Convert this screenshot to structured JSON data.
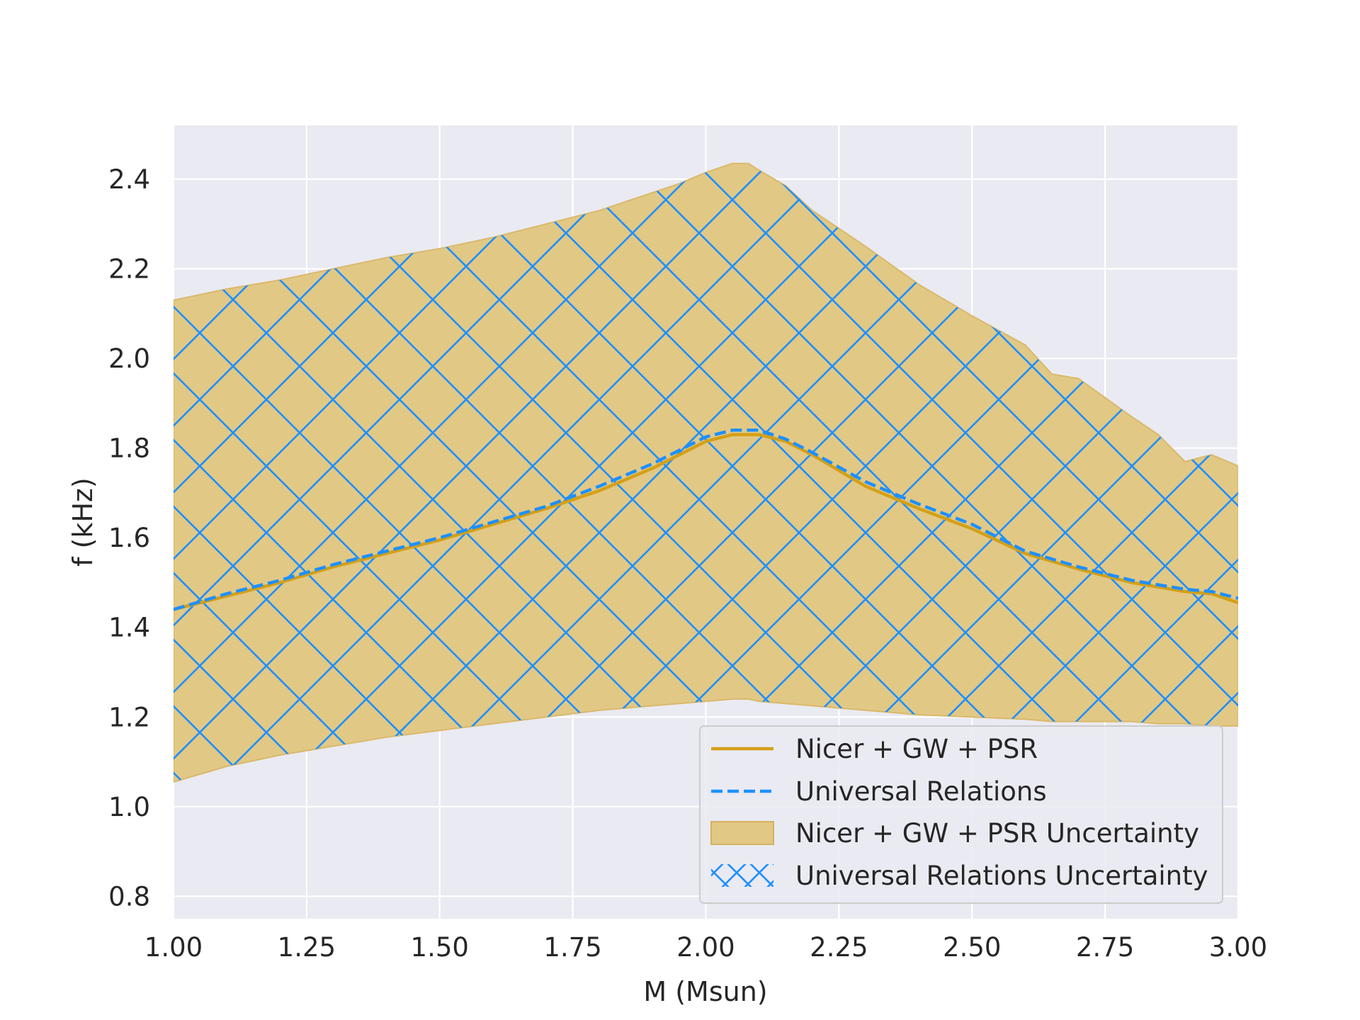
{
  "chart_data": {
    "type": "line",
    "title": "",
    "xlabel": "M (Msun)",
    "ylabel": "f (kHz)",
    "xlim": [
      1.0,
      3.0
    ],
    "ylim": [
      0.75,
      2.52
    ],
    "x_ticks": [
      "1.00",
      "1.25",
      "1.50",
      "1.75",
      "2.00",
      "2.25",
      "2.50",
      "2.75",
      "3.00"
    ],
    "y_ticks": [
      "0.8",
      "1.0",
      "1.2",
      "1.4",
      "1.6",
      "1.8",
      "2.0",
      "2.2",
      "2.4"
    ],
    "grid": true,
    "legend_position": "lower-right",
    "colors": {
      "background": "#eaeaf2",
      "grid": "#ffffff",
      "nicer_line": "#d4a017",
      "nicer_band": "#e2c885",
      "universal": "#1e90ff"
    },
    "series": [
      {
        "name": "Nicer + GW + PSR",
        "style": "solid",
        "x": [
          1.0,
          1.1,
          1.2,
          1.3,
          1.4,
          1.5,
          1.6,
          1.7,
          1.8,
          1.9,
          2.0,
          2.05,
          2.1,
          2.15,
          2.2,
          2.3,
          2.4,
          2.5,
          2.6,
          2.7,
          2.8,
          2.9,
          2.95,
          3.0
        ],
        "y": [
          1.44,
          1.47,
          1.5,
          1.535,
          1.565,
          1.595,
          1.63,
          1.665,
          1.705,
          1.755,
          1.815,
          1.83,
          1.83,
          1.815,
          1.785,
          1.715,
          1.665,
          1.62,
          1.565,
          1.53,
          1.5,
          1.48,
          1.475,
          1.455
        ]
      },
      {
        "name": "Universal Relations",
        "style": "dashed",
        "x": [
          1.0,
          1.1,
          1.2,
          1.3,
          1.4,
          1.5,
          1.6,
          1.7,
          1.8,
          1.9,
          2.0,
          2.05,
          2.1,
          2.15,
          2.2,
          2.3,
          2.4,
          2.5,
          2.6,
          2.7,
          2.8,
          2.9,
          2.95,
          3.0
        ],
        "y": [
          1.44,
          1.475,
          1.505,
          1.54,
          1.57,
          1.6,
          1.635,
          1.67,
          1.715,
          1.765,
          1.825,
          1.84,
          1.84,
          1.82,
          1.79,
          1.725,
          1.675,
          1.63,
          1.57,
          1.535,
          1.505,
          1.485,
          1.48,
          1.465
        ]
      }
    ],
    "bands": [
      {
        "name": "Nicer + GW + PSR Uncertainty",
        "style": "filled",
        "x": [
          1.0,
          1.1,
          1.2,
          1.3,
          1.4,
          1.5,
          1.6,
          1.7,
          1.8,
          1.9,
          1.95,
          2.0,
          2.05,
          2.08,
          2.1,
          2.15,
          2.2,
          2.3,
          2.4,
          2.5,
          2.6,
          2.65,
          2.7,
          2.8,
          2.85,
          2.9,
          2.95,
          3.0
        ],
        "upper": [
          2.13,
          2.155,
          2.175,
          2.2,
          2.225,
          2.245,
          2.27,
          2.3,
          2.33,
          2.37,
          2.39,
          2.415,
          2.435,
          2.435,
          2.42,
          2.385,
          2.33,
          2.25,
          2.165,
          2.095,
          2.03,
          1.965,
          1.955,
          1.87,
          1.83,
          1.77,
          1.785,
          1.76
        ],
        "lower": [
          1.055,
          1.09,
          1.115,
          1.135,
          1.155,
          1.17,
          1.185,
          1.2,
          1.215,
          1.225,
          1.23,
          1.235,
          1.24,
          1.24,
          1.235,
          1.23,
          1.225,
          1.215,
          1.205,
          1.2,
          1.195,
          1.19,
          1.19,
          1.19,
          1.185,
          1.185,
          1.18,
          1.18
        ]
      },
      {
        "name": "Universal Relations Uncertainty",
        "style": "crosshatch",
        "x": [
          1.0,
          1.1,
          1.2,
          1.3,
          1.4,
          1.5,
          1.6,
          1.7,
          1.8,
          1.9,
          1.95,
          2.0,
          2.05,
          2.08,
          2.1,
          2.15,
          2.2,
          2.3,
          2.4,
          2.5,
          2.6,
          2.65,
          2.7,
          2.8,
          2.85,
          2.9,
          2.95,
          3.0
        ],
        "upper": [
          2.13,
          2.155,
          2.175,
          2.2,
          2.225,
          2.245,
          2.27,
          2.3,
          2.33,
          2.37,
          2.39,
          2.415,
          2.435,
          2.435,
          2.42,
          2.385,
          2.33,
          2.25,
          2.165,
          2.095,
          2.03,
          1.965,
          1.955,
          1.87,
          1.83,
          1.77,
          1.785,
          1.76
        ],
        "lower": [
          1.055,
          1.09,
          1.115,
          1.135,
          1.155,
          1.17,
          1.185,
          1.2,
          1.215,
          1.225,
          1.23,
          1.235,
          1.24,
          1.24,
          1.235,
          1.23,
          1.225,
          1.215,
          1.205,
          1.2,
          1.195,
          1.19,
          1.19,
          1.19,
          1.185,
          1.185,
          1.18,
          1.18
        ]
      }
    ]
  }
}
